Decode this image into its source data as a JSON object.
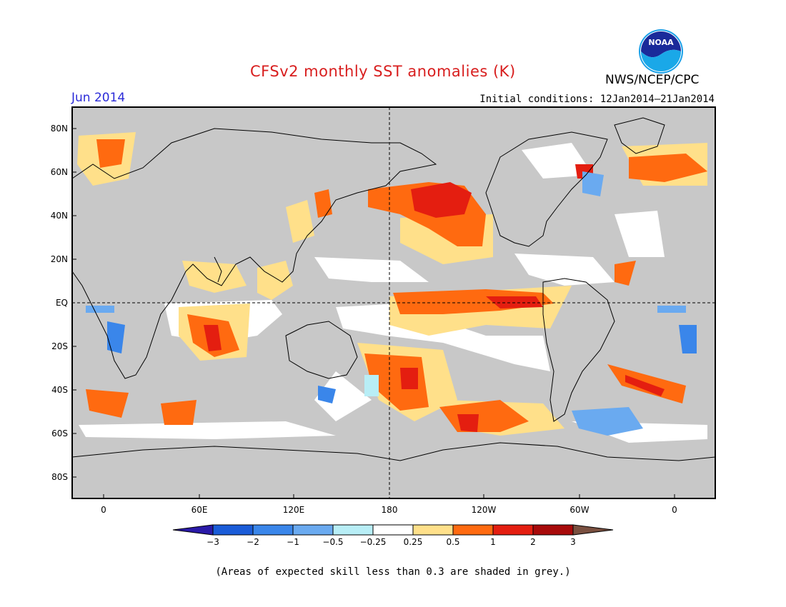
{
  "header": {
    "title": "CFSv2 monthly SST anomalies (K)",
    "period": "Jun 2014",
    "initial_conditions": "Initial conditions: 12Jan2014–21Jan2014",
    "agency": "NWS/NCEP/CPC",
    "logo_text": "NOAA"
  },
  "map": {
    "lat_labels": [
      "80N",
      "60N",
      "40N",
      "20N",
      "EQ",
      "20S",
      "40S",
      "60S",
      "80S"
    ],
    "lon_labels": [
      "0",
      "60E",
      "120E",
      "180",
      "120W",
      "60W",
      "0"
    ],
    "background_color": "#c8c8c8",
    "land_outline_color": "#000000"
  },
  "colorbar": {
    "labels": [
      "−3",
      "−2",
      "−1",
      "−0.5",
      "−0.25",
      "0.25",
      "0.5",
      "1",
      "2",
      "3"
    ],
    "colors": [
      "#2a1aa8",
      "#1a5cd8",
      "#3a86ea",
      "#6aaaf0",
      "#b8eef6",
      "#ffffff",
      "#ffe08a",
      "#ff6a10",
      "#e41e10",
      "#a80a0a",
      "#7a5040"
    ]
  },
  "footer": {
    "note": "(Areas of expected skill less than 0.3 are shaded in grey.)"
  }
}
